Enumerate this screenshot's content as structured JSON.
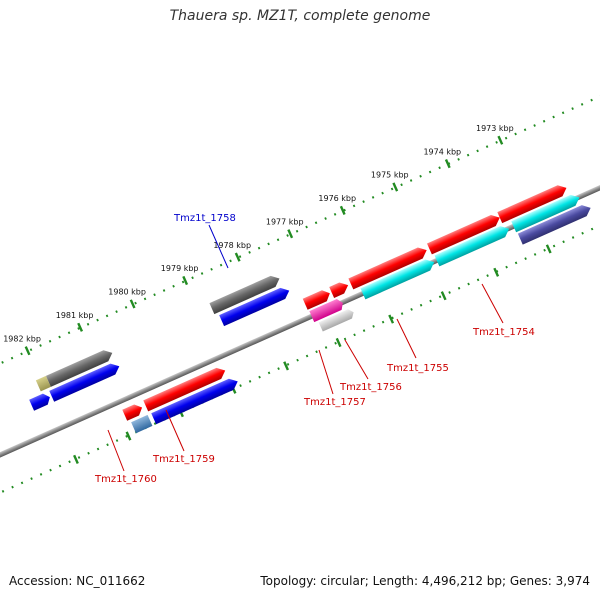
{
  "header": {
    "title": "Thauera sp. MZ1T, complete genome"
  },
  "footer": {
    "accession": "Accession: NC_011662",
    "summary": "Topology: circular; Length: 4,496,212 bp; Genes: 3,974"
  },
  "scale": {
    "tick_color": "#228b22",
    "ticks": [
      "1973 kbp",
      "1974 kbp",
      "1975 kbp",
      "1976 kbp",
      "1977 kbp",
      "1978 kbp",
      "1979 kbp",
      "1980 kbp",
      "1981 kbp",
      "1982 kbp"
    ]
  },
  "colors": {
    "backbone": "#808080",
    "forward_gene": "#ff0000",
    "reverse_gene": "#0000ff",
    "rna_gene": "#00e5e5",
    "other_gene": "#666666",
    "label_red": "#cc0000",
    "label_blue": "#0000cc"
  },
  "genes": [
    {
      "label": "Tmz1t_1754",
      "strand": "forward"
    },
    {
      "label": "Tmz1t_1755",
      "strand": "forward"
    },
    {
      "label": "Tmz1t_1756",
      "strand": "forward"
    },
    {
      "label": "Tmz1t_1757",
      "strand": "forward"
    },
    {
      "label": "Tmz1t_1758",
      "strand": "reverse"
    },
    {
      "label": "Tmz1t_1759",
      "strand": "forward"
    },
    {
      "label": "Tmz1t_1760",
      "strand": "forward"
    }
  ]
}
